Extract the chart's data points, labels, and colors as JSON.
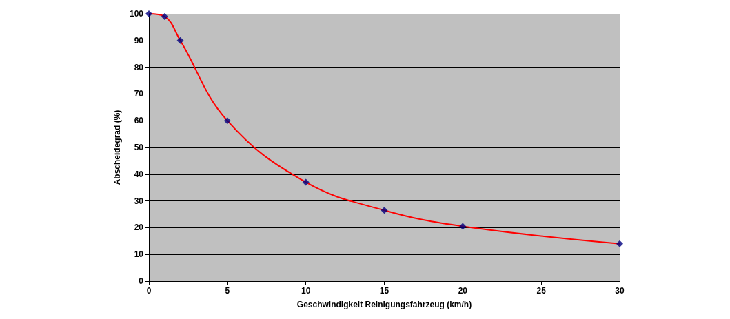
{
  "chart_data": {
    "type": "line",
    "xlabel": "Geschwindigkeit Reinigungsfahrzeug (km/h)",
    "ylabel": "Abscheidegrad (%)",
    "x": [
      0,
      1,
      2,
      5,
      10,
      15,
      20,
      30
    ],
    "series": [
      {
        "color": "#ff0000",
        "marker": "none",
        "values": [
          100,
          99,
          90,
          60,
          37,
          26.5,
          20.5,
          14
        ]
      },
      {
        "type": "scatter",
        "color": "#000080",
        "marker": "diamond",
        "values": [
          100,
          99,
          90,
          60,
          37,
          26.5,
          20.5,
          14
        ]
      }
    ],
    "xlim": [
      0,
      30
    ],
    "xticks": [
      0,
      5,
      10,
      15,
      20,
      25,
      30
    ],
    "ylim": [
      0,
      100
    ],
    "yticks": [
      0,
      10,
      20,
      30,
      40,
      50,
      60,
      70,
      80,
      90,
      100
    ],
    "grid": "y"
  }
}
